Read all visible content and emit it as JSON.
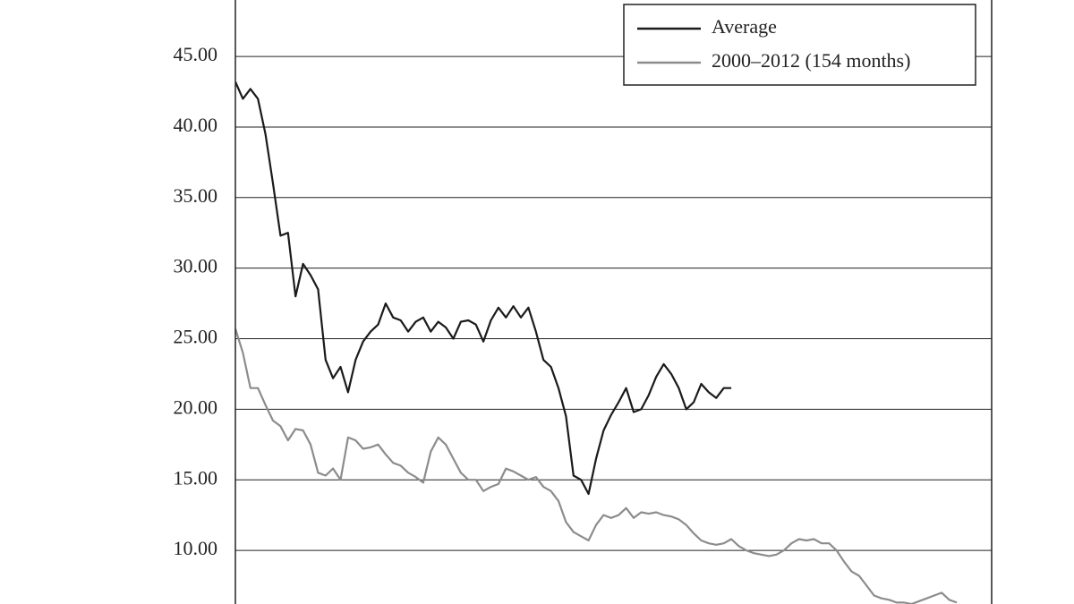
{
  "chart_data": {
    "type": "line",
    "ylim": [
      6.2,
      49
    ],
    "yticks": [
      {
        "value": 10,
        "label": "10.00"
      },
      {
        "value": 15,
        "label": "15.00"
      },
      {
        "value": 20,
        "label": "20.00"
      },
      {
        "value": 25,
        "label": "25.00"
      },
      {
        "value": 30,
        "label": "30.00"
      },
      {
        "value": 35,
        "label": "35.00"
      },
      {
        "value": 40,
        "label": "40.00"
      },
      {
        "value": 45,
        "label": "45.00"
      }
    ],
    "grid": true,
    "legend": "upper right",
    "series": [
      {
        "name": "Average",
        "color": "#1a1a1a",
        "values": [
          43.2,
          42.0,
          42.7,
          42.0,
          39.5,
          36.0,
          32.3,
          32.5,
          28.0,
          30.3,
          29.5,
          28.5,
          23.5,
          22.2,
          23.0,
          21.2,
          23.5,
          24.8,
          25.5,
          26.0,
          27.5,
          26.5,
          26.3,
          25.5,
          26.2,
          26.5,
          25.5,
          26.2,
          25.8,
          25.0,
          26.2,
          26.3,
          26.0,
          24.8,
          26.3,
          27.2,
          26.5,
          27.3,
          26.5,
          27.2,
          25.5,
          23.5,
          23.0,
          21.5,
          19.5,
          15.3,
          15.0,
          14.0,
          16.5,
          18.5,
          19.6,
          20.5,
          21.5,
          19.8,
          20.0,
          21.0,
          22.3,
          23.2,
          22.5,
          21.5,
          20.0,
          20.5,
          21.8,
          21.2,
          20.8,
          21.5,
          21.5,
          null,
          null,
          null,
          null,
          null,
          null,
          null,
          null,
          null,
          null,
          null,
          null,
          null,
          null,
          null,
          null,
          null,
          null,
          null,
          null,
          null,
          null,
          null,
          null,
          null,
          null,
          null,
          null,
          null,
          null
        ]
      },
      {
        "name": "2000–2012 (154 months)",
        "color": "#8c8c8c",
        "values": [
          25.7,
          24.0,
          21.5,
          21.5,
          20.3,
          19.2,
          18.8,
          17.8,
          18.6,
          18.5,
          17.5,
          15.5,
          15.3,
          15.8,
          15.0,
          18.0,
          17.8,
          17.2,
          17.3,
          17.5,
          16.8,
          16.2,
          16.0,
          15.5,
          15.2,
          14.8,
          17.0,
          18.0,
          17.5,
          16.5,
          15.5,
          15.0,
          15.0,
          14.2,
          14.5,
          14.7,
          15.8,
          15.6,
          15.3,
          15.0,
          15.2,
          14.5,
          14.2,
          13.5,
          12.0,
          11.3,
          11.0,
          10.7,
          11.8,
          12.5,
          12.3,
          12.5,
          13.0,
          12.3,
          12.7,
          12.6,
          12.7,
          12.5,
          12.4,
          12.2,
          11.8,
          11.2,
          10.7,
          10.5,
          10.4,
          10.5,
          10.8,
          10.3,
          10.0,
          9.8,
          9.7,
          9.6,
          9.7,
          10.0,
          10.5,
          10.8,
          10.7,
          10.8,
          10.5,
          10.5,
          10.0,
          9.2,
          8.5,
          8.2,
          7.5,
          6.8,
          6.6,
          6.5,
          6.3,
          6.3,
          6.2,
          6.4,
          6.6,
          6.8,
          7.0,
          6.5,
          6.3
        ]
      }
    ]
  }
}
